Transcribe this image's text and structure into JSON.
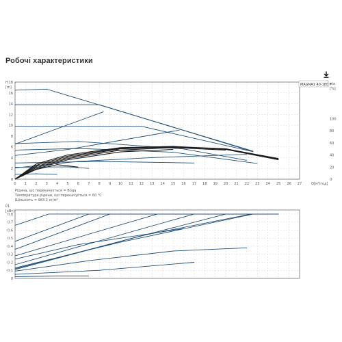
{
  "page": {
    "title": "Робочі характеристики"
  },
  "colors": {
    "grid": "#d6d6d6",
    "curve_blue": "#1f4e79",
    "curve_black": "#1a1a1a",
    "axis_text": "#555555",
    "frame": "#444444"
  },
  "icons": {
    "download": "download-icon"
  },
  "chart_data": [
    {
      "type": "line",
      "panel": "head-efficiency",
      "legend_label": "MAGNA1 40-180 F",
      "left_axis_units": [
        "H",
        "[m]"
      ],
      "right_axis_units": [
        "eta",
        "[%]"
      ],
      "x_axis_label": "Q[м³/год]",
      "x_ticks": [
        "0",
        "1",
        "2",
        "3",
        "4",
        "5",
        "6",
        "7",
        "8",
        "9",
        "10",
        "11",
        "12",
        "13",
        "14",
        "15",
        "16",
        "17",
        "18",
        "19",
        "20",
        "21",
        "22",
        "23",
        "24",
        "25",
        "26",
        "27"
      ],
      "xlim": [
        0,
        27
      ],
      "y_ticks": [
        "0",
        "2",
        "4",
        "6",
        "8",
        "10",
        "12",
        "14",
        "16",
        "18"
      ],
      "ylim": [
        0,
        18
      ],
      "y2_ticks": [
        "0",
        "20",
        "40",
        "60",
        "80",
        "100"
      ],
      "y2lim": [
        0,
        160
      ],
      "grid": true,
      "legend_position": "top-right",
      "notes": [
        "Рідина, що перекачується = Вода",
        "Температура рідини, що перекачується = 60 °C",
        "Щільність = 983.2 кг/м³"
      ],
      "head_curves": [
        {
          "x": [
            0,
            3,
            22.6
          ],
          "y": [
            16.5,
            16.7,
            5.2
          ]
        },
        {
          "x": [
            0,
            8,
            22.6
          ],
          "y": [
            13.8,
            13.8,
            5.1
          ]
        },
        {
          "x": [
            0,
            8.4
          ],
          "y": [
            6.5,
            12.5
          ]
        },
        {
          "x": [
            0,
            12,
            22.6
          ],
          "y": [
            9.8,
            9.8,
            5.1
          ]
        },
        {
          "x": [
            0,
            5,
            15.6
          ],
          "y": [
            4.4,
            5.5,
            9.1
          ]
        },
        {
          "x": [
            0,
            6,
            16,
            22
          ],
          "y": [
            6.6,
            7.0,
            5.6,
            3.5
          ]
        },
        {
          "x": [
            0,
            6,
            15,
            23
          ],
          "y": [
            5.4,
            5.7,
            5.0,
            2.9
          ]
        },
        {
          "x": [
            0,
            8,
            17
          ],
          "y": [
            3.0,
            3.3,
            3.0
          ]
        },
        {
          "x": [
            0,
            5,
            7
          ],
          "y": [
            2.2,
            2.3,
            2.0
          ]
        },
        {
          "x": [
            0,
            2,
            4
          ],
          "y": [
            0.9,
            1.0,
            0.9
          ]
        },
        {
          "x": [
            0,
            6,
            13,
            22
          ],
          "y": [
            2.1,
            3.3,
            4.0,
            4.6
          ]
        }
      ],
      "efficiency_curves": [
        {
          "x": [
            0,
            2,
            5,
            10,
            15,
            20,
            25
          ],
          "y": [
            0,
            25,
            40,
            52,
            54,
            49,
            32
          ]
        },
        {
          "x": [
            0,
            2,
            5,
            10,
            15,
            20,
            25
          ],
          "y": [
            0,
            23,
            38,
            51,
            54,
            50,
            33
          ]
        },
        {
          "x": [
            0,
            2,
            5,
            10,
            15,
            20,
            25
          ],
          "y": [
            0,
            21,
            36,
            50,
            53,
            50,
            34
          ]
        },
        {
          "x": [
            0,
            2,
            5,
            10,
            15,
            20
          ],
          "y": [
            0,
            19,
            34,
            48,
            52,
            48
          ]
        },
        {
          "x": [
            0,
            2,
            5,
            10,
            15
          ],
          "y": [
            0,
            17,
            32,
            45,
            49
          ]
        },
        {
          "x": [
            0,
            2,
            4,
            6
          ],
          "y": [
            0,
            16,
            24,
            20
          ]
        }
      ]
    },
    {
      "type": "line",
      "panel": "power",
      "axis_units": [
        "P1",
        "[кВт]"
      ],
      "y_ticks": [
        "0",
        "0.1",
        "0.2",
        "0.3",
        "0.4",
        "0.5",
        "0.6",
        "0.7",
        "0.8"
      ],
      "ylim": [
        0,
        0.85
      ],
      "xlim": [
        0,
        27
      ],
      "grid": true,
      "curves": [
        {
          "x": [
            0,
            3.2,
            25
          ],
          "y": [
            0.66,
            0.8,
            0.8
          ]
        },
        {
          "x": [
            0,
            7,
            25
          ],
          "y": [
            0.46,
            0.8,
            0.8
          ]
        },
        {
          "x": [
            0,
            9,
            25
          ],
          "y": [
            0.36,
            0.8,
            0.8
          ]
        },
        {
          "x": [
            0,
            13.5,
            25
          ],
          "y": [
            0.28,
            0.8,
            0.8
          ]
        },
        {
          "x": [
            0,
            17,
            25
          ],
          "y": [
            0.17,
            0.8,
            0.8
          ]
        },
        {
          "x": [
            0,
            20,
            25
          ],
          "y": [
            0.12,
            0.8,
            0.8
          ]
        },
        {
          "x": [
            0,
            12,
            22.4
          ],
          "y": [
            0.11,
            0.53,
            0.8
          ]
        },
        {
          "x": [
            0,
            10,
            22.6
          ],
          "y": [
            0.13,
            0.45,
            0.8
          ]
        },
        {
          "x": [
            0,
            6,
            16
          ],
          "y": [
            0.24,
            0.42,
            0.62
          ]
        },
        {
          "x": [
            0,
            7,
            15,
            22
          ],
          "y": [
            0.09,
            0.22,
            0.34,
            0.38
          ]
        },
        {
          "x": [
            0,
            8,
            17
          ],
          "y": [
            0.05,
            0.1,
            0.2
          ]
        },
        {
          "x": [
            0,
            4,
            7
          ],
          "y": [
            0.02,
            0.03,
            0.03
          ]
        }
      ]
    }
  ]
}
